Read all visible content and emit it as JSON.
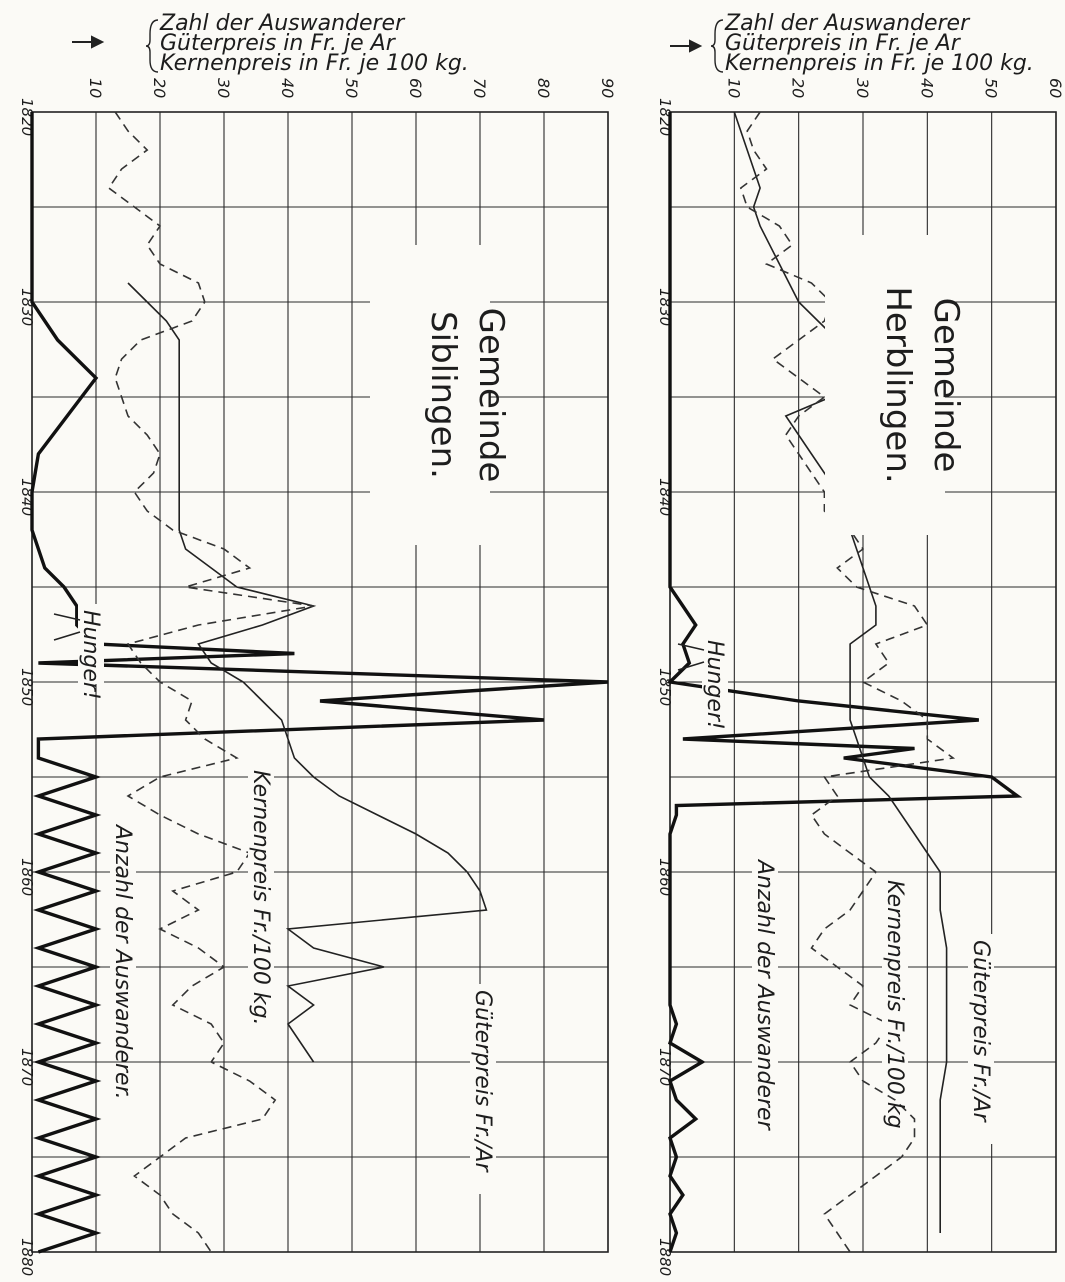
{
  "chart_data": [
    {
      "type": "line",
      "title": "Gemeinde Siblingen.",
      "legend_lines": [
        "Zahl der Auswanderer",
        "Güterpreis in Fr. je Ar",
        "Kernenpreis in Fr. je 100 kg."
      ],
      "x_ticks": [
        "1820",
        "1830",
        "1840",
        "1850",
        "1860",
        "1870",
        "1880"
      ],
      "y_ticks": [
        "10",
        "20",
        "30",
        "40",
        "50",
        "60",
        "70",
        "80",
        "90"
      ],
      "xlim": [
        1820,
        1880
      ],
      "ylim": [
        0,
        90
      ],
      "grid": true,
      "annotations": {
        "hunger": "Hunger!",
        "emigrants": "Anzahl der Auswanderer.",
        "grain": "Kernenpreis Fr./100 kg.",
        "land": "Güterpreis Fr./Ar"
      },
      "series": [
        {
          "key": "emigrants",
          "x": [
            1820,
            1830,
            1832,
            1834,
            1838,
            1840,
            1842,
            1843,
            1844,
            1845,
            1846,
            1846.5,
            1847,
            1848,
            1848.5,
            1849,
            1850,
            1850.5,
            1851,
            1852,
            1853,
            1854,
            1855,
            1856,
            1857,
            1858,
            1859,
            1860,
            1861,
            1862,
            1863,
            1864,
            1865,
            1866,
            1867,
            1868,
            1869,
            1870,
            1871,
            1872,
            1873,
            1874,
            1875,
            1876,
            1877,
            1878,
            1879,
            1880
          ],
          "y": [
            0,
            0,
            4,
            10,
            1,
            0,
            0,
            1,
            2,
            5,
            7,
            7,
            7,
            10,
            41,
            1,
            90,
            67,
            45,
            80,
            1,
            1,
            10,
            1,
            10,
            1,
            10,
            1,
            10,
            1,
            10,
            1,
            10,
            1,
            10,
            1,
            10,
            1,
            10,
            1,
            10,
            1,
            10,
            1,
            10,
            1,
            10,
            1
          ]
        },
        {
          "key": "land",
          "x": [
            1829,
            1830,
            1831,
            1832,
            1833,
            1840,
            1841,
            1842,
            1843,
            1844,
            1845,
            1846,
            1847,
            1848,
            1849,
            1850,
            1851,
            1852,
            1853,
            1854,
            1855,
            1856,
            1857,
            1858,
            1859,
            1860,
            1861,
            1862,
            1863,
            1864,
            1865,
            1866,
            1867,
            1868,
            1869,
            1870
          ],
          "y": [
            15,
            18,
            21,
            23,
            23,
            23,
            23,
            23,
            24,
            28,
            32,
            44,
            36,
            26,
            28,
            33,
            36,
            39,
            40,
            41,
            44,
            48,
            54,
            60,
            65,
            68,
            70,
            71,
            40,
            44,
            55,
            40,
            44,
            40,
            42,
            44
          ]
        },
        {
          "key": "grain",
          "x": [
            1820,
            1821,
            1822,
            1823,
            1824,
            1825,
            1826,
            1827,
            1828,
            1829,
            1830,
            1831,
            1832,
            1833,
            1834,
            1835,
            1836,
            1837,
            1838,
            1839,
            1840,
            1841,
            1842,
            1843,
            1844,
            1845,
            1846,
            1847,
            1848,
            1849,
            1850,
            1851,
            1852,
            1853,
            1854,
            1855,
            1856,
            1857,
            1858,
            1859,
            1860,
            1861,
            1862,
            1863,
            1864,
            1865,
            1866,
            1867,
            1868,
            1869,
            1870,
            1871,
            1872,
            1873,
            1874,
            1875,
            1876,
            1877,
            1878,
            1879,
            1880
          ],
          "y": [
            13,
            15,
            18,
            14,
            12,
            16,
            20,
            18,
            20,
            26,
            27,
            25,
            17,
            14,
            13,
            14,
            15,
            18,
            20,
            19,
            16,
            18,
            22,
            30,
            34,
            24,
            44,
            26,
            15,
            17,
            20,
            25,
            24,
            27,
            32,
            20,
            15,
            20,
            26,
            34,
            32,
            22,
            26,
            20,
            26,
            30,
            25,
            22,
            28,
            30,
            28,
            34,
            38,
            36,
            24,
            20,
            16,
            20,
            22,
            26,
            28
          ]
        }
      ]
    },
    {
      "type": "line",
      "title": "Gemeinde Herblingen.",
      "legend_lines": [
        "Zahl der Auswanderer",
        "Güterpreis in Fr. je Ar",
        "Kernenpreis in Fr. je 100 kg."
      ],
      "x_ticks": [
        "1820",
        "1830",
        "1840",
        "1850",
        "1860",
        "1870",
        "1880"
      ],
      "y_ticks": [
        "10",
        "20",
        "30",
        "40",
        "50",
        "60"
      ],
      "xlim": [
        1820,
        1880
      ],
      "ylim": [
        0,
        60
      ],
      "grid": true,
      "annotations": {
        "hunger": "Hunger!",
        "emigrants": "Anzahl der Auswanderer",
        "grain": "Kernenpreis Fr./100 kg",
        "land": "Güterpreis Fr./Ar"
      },
      "series": [
        {
          "key": "emigrants",
          "x": [
            1820,
            1845,
            1846,
            1847,
            1848,
            1849,
            1850,
            1851,
            1852,
            1853,
            1853.5,
            1854,
            1855,
            1856,
            1856.5,
            1857,
            1858,
            1867,
            1868,
            1869,
            1870,
            1871,
            1872,
            1873,
            1874,
            1875,
            1876,
            1877,
            1878,
            1879,
            1880
          ],
          "y": [
            0,
            0,
            2,
            4,
            2,
            3,
            0,
            20,
            48,
            2,
            38,
            27,
            50,
            54,
            1,
            1,
            0,
            0,
            1,
            0,
            5,
            0,
            1,
            4,
            0,
            1,
            0,
            2,
            0,
            1,
            0
          ]
        },
        {
          "key": "land",
          "x": [
            1820,
            1822,
            1824,
            1825,
            1826,
            1828,
            1830,
            1832,
            1834,
            1836,
            1838,
            1840,
            1842,
            1844,
            1846,
            1847,
            1848,
            1849,
            1850,
            1851,
            1852,
            1853,
            1854,
            1855,
            1856,
            1857,
            1858,
            1859,
            1860,
            1862,
            1864,
            1866,
            1868,
            1870,
            1872,
            1874,
            1876,
            1878,
            1879
          ],
          "y": [
            10,
            12,
            14,
            13,
            14,
            17,
            20,
            26,
            32,
            18,
            22,
            26,
            28,
            30,
            32,
            32,
            28,
            28,
            28,
            28,
            28,
            29,
            30,
            31,
            34,
            36,
            38,
            40,
            42,
            42,
            43,
            43,
            43,
            43,
            42,
            42,
            42,
            42,
            42
          ]
        },
        {
          "key": "grain",
          "x": [
            1820,
            1821,
            1822,
            1823,
            1824,
            1825,
            1826,
            1827,
            1828,
            1829,
            1830,
            1831,
            1832,
            1833,
            1834,
            1835,
            1836,
            1837,
            1838,
            1839,
            1840,
            1841,
            1842,
            1843,
            1844,
            1845,
            1846,
            1847,
            1848,
            1849,
            1850,
            1851,
            1852,
            1853,
            1854,
            1855,
            1856,
            1857,
            1858,
            1859,
            1860,
            1861,
            1862,
            1863,
            1864,
            1865,
            1866,
            1867,
            1868,
            1869,
            1870,
            1871,
            1872,
            1873,
            1874,
            1875,
            1876,
            1877,
            1878,
            1879,
            1880
          ],
          "y": [
            14,
            12,
            13,
            15,
            11,
            12,
            17,
            19,
            15,
            22,
            25,
            24,
            20,
            16,
            20,
            24,
            20,
            18,
            20,
            22,
            24,
            24,
            28,
            30,
            26,
            29,
            38,
            40,
            32,
            34,
            30,
            36,
            40,
            40,
            44,
            24,
            26,
            22,
            24,
            28,
            32,
            30,
            28,
            24,
            22,
            26,
            30,
            28,
            34,
            32,
            28,
            30,
            35,
            38,
            38,
            36,
            32,
            28,
            24,
            26,
            28
          ]
        }
      ]
    }
  ]
}
